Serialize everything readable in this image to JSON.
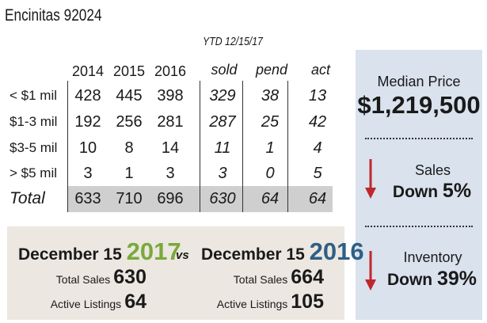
{
  "title": "Encinitas 92024",
  "ytd_label": "YTD 12/15/17",
  "table": {
    "columns": [
      "2014",
      "2015",
      "2016",
      "sold",
      "pend",
      "act"
    ],
    "rows": [
      {
        "label": "< $1 mil",
        "values": [
          "428",
          "445",
          "398",
          "329",
          "38",
          "13"
        ]
      },
      {
        "label": "$1-3 mil",
        "values": [
          "192",
          "256",
          "281",
          "287",
          "25",
          "42"
        ]
      },
      {
        "label": "$3-5 mil",
        "values": [
          "10",
          "8",
          "14",
          "11",
          "1",
          "4"
        ]
      },
      {
        "label": "> $5 mil",
        "values": [
          "3",
          "1",
          "3",
          "3",
          "0",
          "5"
        ]
      }
    ],
    "total": {
      "label": "Total",
      "values": [
        "633",
        "710",
        "696",
        "630",
        "64",
        "64"
      ]
    }
  },
  "summary": {
    "median_label": "Median Price",
    "median_value": "$1,219,500",
    "sales_label": "Sales",
    "sales_direction": "Down",
    "sales_pct": "5%",
    "inventory_label": "Inventory",
    "inventory_direction": "Down",
    "inventory_pct": "39%"
  },
  "comparison": {
    "left_prefix": "December 15",
    "left_year": "2017",
    "vs": "vs",
    "right_prefix": "December 15",
    "right_year": "2016",
    "left_total_sales_label": "Total Sales",
    "left_total_sales": "630",
    "left_active_label": "Active Listings",
    "left_active": "64",
    "right_total_sales_label": "Total Sales",
    "right_total_sales": "664",
    "right_active_label": "Active Listings",
    "right_active": "105"
  },
  "colors": {
    "year_2017": "#7aa93c",
    "year_2016": "#2e5f86",
    "arrow": "#c0272d",
    "right_panel": "#d9e2ed",
    "compare_panel": "#ece7e0"
  }
}
